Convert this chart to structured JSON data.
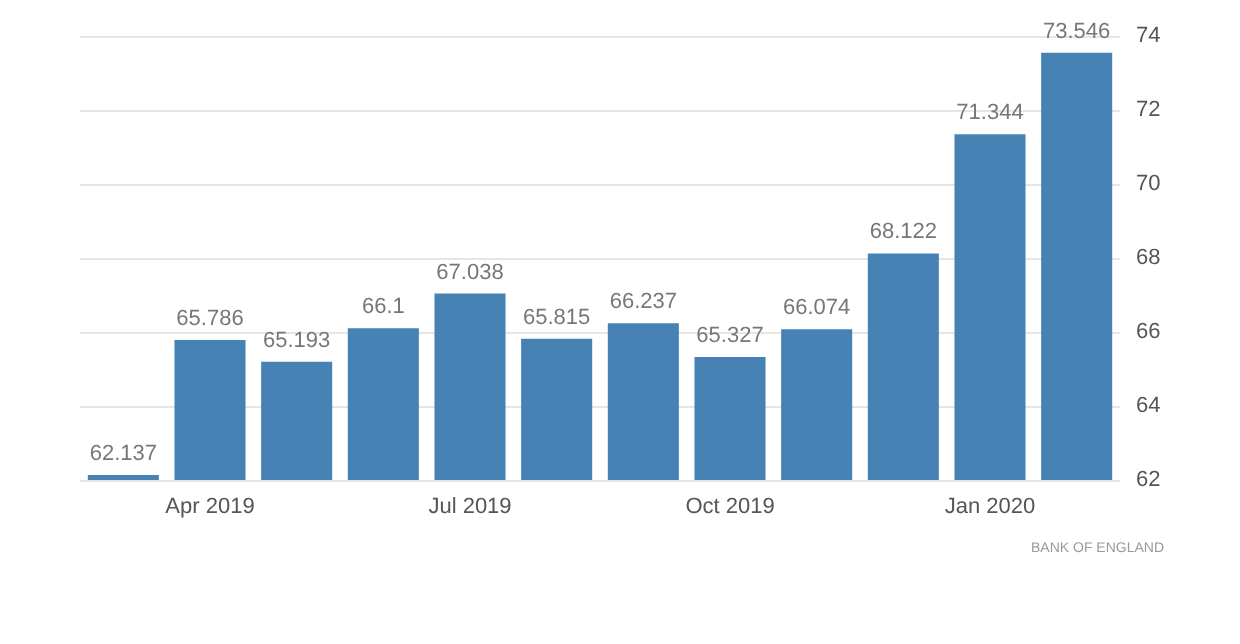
{
  "chart_data": {
    "type": "bar",
    "categories": [
      null,
      "Apr 2019",
      null,
      null,
      "Jul 2019",
      null,
      null,
      "Oct 2019",
      null,
      null,
      "Jan 2020",
      null
    ],
    "values": [
      62.137,
      65.786,
      65.193,
      66.1,
      67.038,
      65.815,
      66.237,
      65.327,
      66.074,
      68.122,
      71.344,
      73.546
    ],
    "color": "#4682b4",
    "ylim": [
      62,
      74
    ],
    "yticks": [
      62,
      64,
      66,
      68,
      70,
      72,
      74
    ],
    "grid": "y",
    "data_labels": true,
    "annotations": [
      "BANK OF ENGLAND"
    ]
  }
}
